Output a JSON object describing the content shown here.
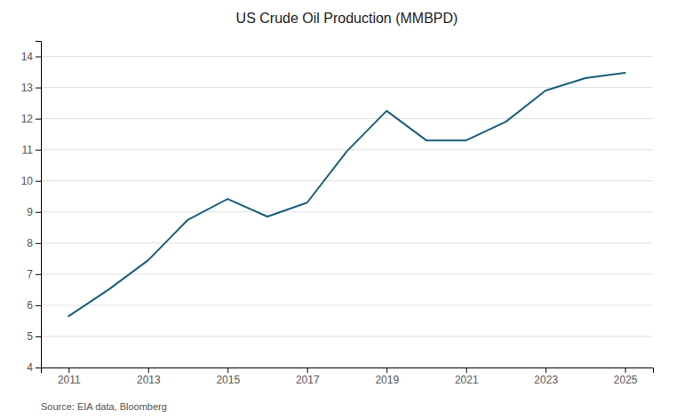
{
  "chart_data": {
    "type": "line",
    "title": "US Crude Oil Production (MMBPD)",
    "annotations": [
      "Source: EIA data, Bloomberg"
    ],
    "x": [
      2011,
      2012,
      2013,
      2014,
      2015,
      2016,
      2017,
      2018,
      2019,
      2020,
      2021,
      2022,
      2023,
      2024,
      2025
    ],
    "values": [
      5.65,
      6.5,
      7.45,
      8.75,
      9.42,
      8.85,
      9.3,
      10.95,
      12.25,
      11.3,
      11.3,
      11.9,
      12.9,
      13.3,
      13.47
    ],
    "color": "#1b5e7b",
    "xlim": [
      2010.3,
      2025.7
    ],
    "ylim": [
      4,
      14.5
    ],
    "xticks": [
      2011,
      2013,
      2015,
      2017,
      2019,
      2021,
      2023,
      2025
    ],
    "yticks": [
      4,
      5,
      6,
      7,
      8,
      9,
      10,
      11,
      12,
      13,
      14
    ],
    "grid": true
  }
}
